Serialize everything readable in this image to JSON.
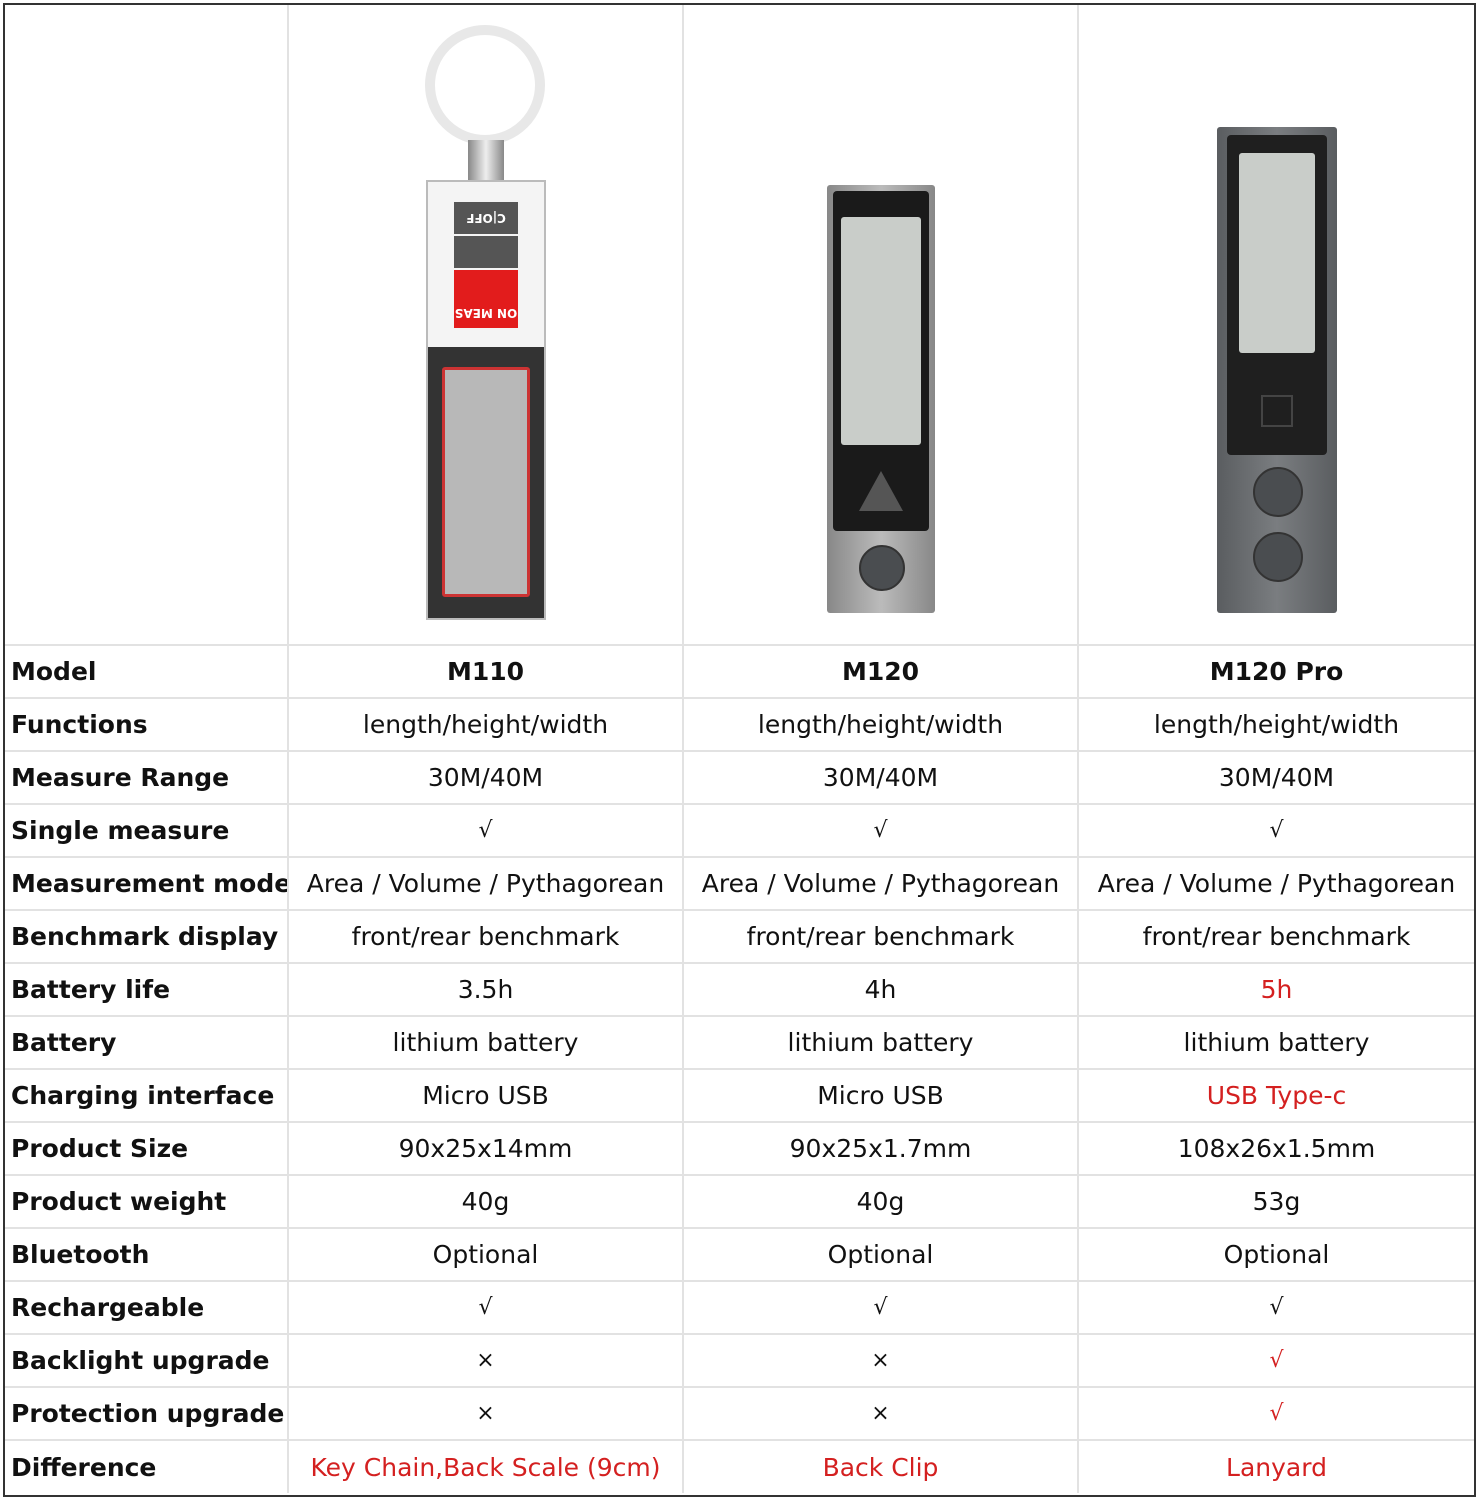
{
  "colors": {
    "highlight": "#d42020"
  },
  "products": [
    {
      "image": "M110 key-chain laser distance meter",
      "device_labels": [
        "C|OFF",
        "ON MEAS"
      ]
    },
    {
      "image": "M120 laser distance meter"
    },
    {
      "image": "M120 Pro laser distance meter"
    }
  ],
  "rows": [
    {
      "label": "Model",
      "values": [
        "M110",
        "M120",
        "M120 Pro"
      ]
    },
    {
      "label": "Functions",
      "values": [
        "length/height/width",
        "length/height/width",
        "length/height/width"
      ]
    },
    {
      "label": "Measure Range",
      "values": [
        "30M/40M",
        "30M/40M",
        "30M/40M"
      ]
    },
    {
      "label": "Single measure",
      "values": [
        "√",
        "√",
        "√"
      ]
    },
    {
      "label": "Measurement model",
      "values": [
        "Area / Volume / Pythagorean",
        "Area / Volume / Pythagorean",
        "Area / Volume / Pythagorean"
      ]
    },
    {
      "label": "Benchmark display",
      "values": [
        "front/rear benchmark",
        "front/rear benchmark",
        "front/rear benchmark"
      ]
    },
    {
      "label": "Battery life",
      "values": [
        "3.5h",
        "4h",
        "5h"
      ]
    },
    {
      "label": "Battery",
      "values": [
        "lithium battery",
        "lithium battery",
        "lithium battery"
      ]
    },
    {
      "label": "Charging interface",
      "values": [
        "Micro USB",
        "Micro USB",
        "USB Type-c"
      ]
    },
    {
      "label": "Product Size",
      "values": [
        "90x25x14mm",
        "90x25x1.7mm",
        "108x26x1.5mm"
      ]
    },
    {
      "label": "Product weight",
      "values": [
        "40g",
        "40g",
        "53g"
      ]
    },
    {
      "label": "Bluetooth",
      "values": [
        "Optional",
        "Optional",
        "Optional"
      ]
    },
    {
      "label": "Rechargeable",
      "values": [
        "√",
        "√",
        "√"
      ]
    },
    {
      "label": "Backlight upgrade",
      "values": [
        "×",
        "×",
        "√"
      ]
    },
    {
      "label": "Protection upgrade",
      "values": [
        "×",
        "×",
        "√"
      ]
    },
    {
      "label": "Difference",
      "values": [
        "Key Chain,Back Scale (9cm)",
        "Back Clip",
        "Lanyard"
      ]
    }
  ]
}
